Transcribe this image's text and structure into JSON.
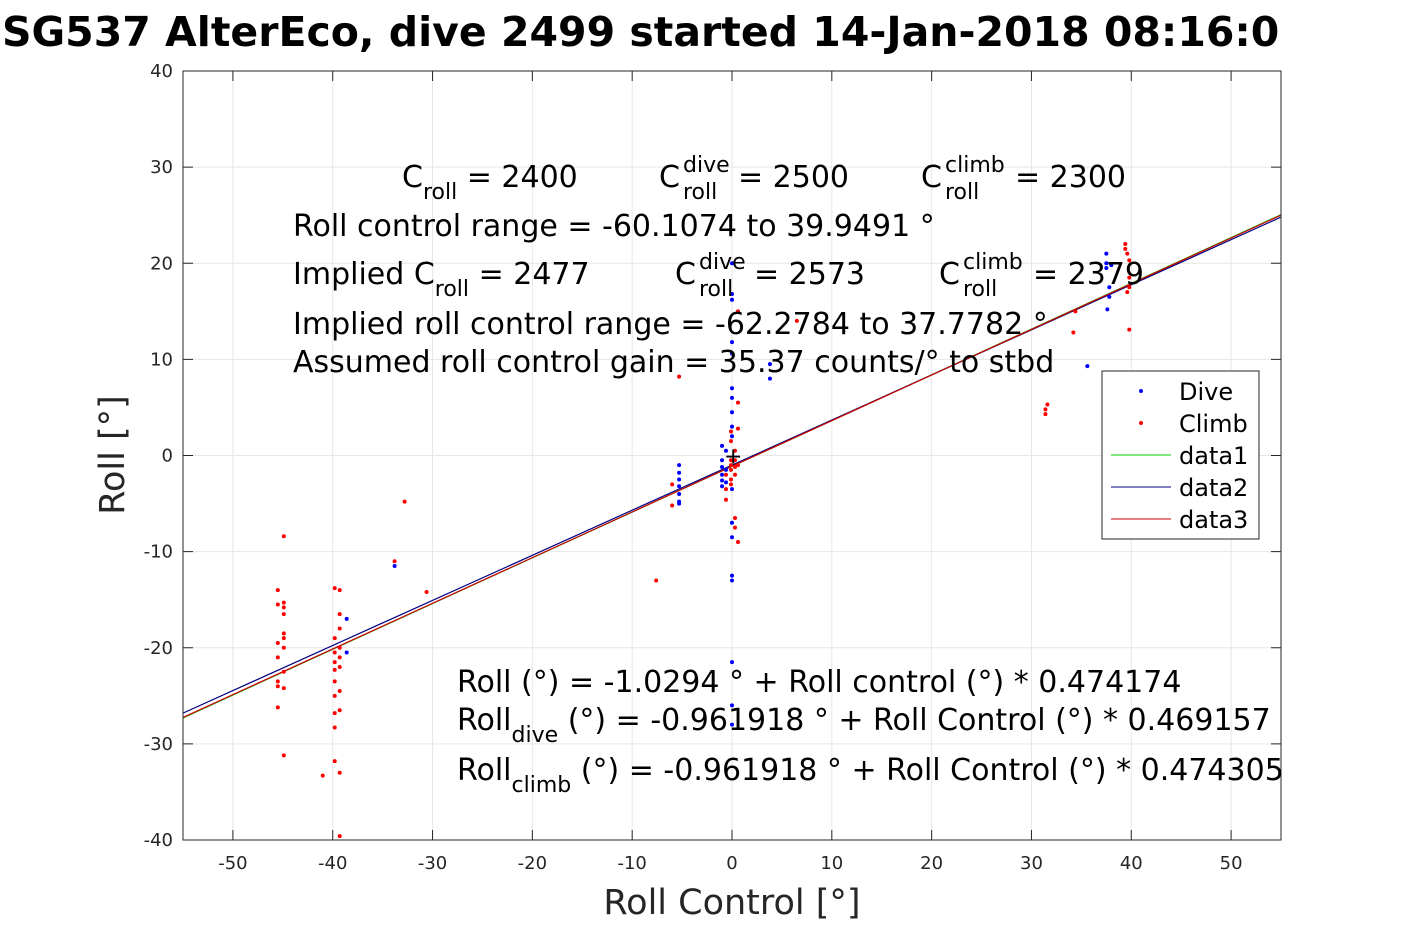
{
  "chart_data": {
    "type": "scatter",
    "title": "SG537 AlterEco, dive 2499 started 14-Jan-2018 08:16:0",
    "xlabel": "Roll Control [°]",
    "ylabel": "Roll [°]",
    "xlim": [
      -55,
      55
    ],
    "ylim": [
      -40,
      40
    ],
    "xticks": [
      -50,
      -40,
      -30,
      -20,
      -10,
      0,
      10,
      20,
      30,
      40,
      50
    ],
    "yticks": [
      -40,
      -30,
      -20,
      -10,
      0,
      10,
      20,
      30,
      40
    ],
    "xtick_labels": [
      "-50",
      "-40",
      "-30",
      "-20",
      "-10",
      "0",
      "10",
      "20",
      "30",
      "40",
      "50"
    ],
    "ytick_labels": [
      "-40",
      "-30",
      "-20",
      "-10",
      "0",
      "10",
      "20",
      "30",
      "40"
    ],
    "grid": true,
    "legend_position": "right",
    "legend": [
      "Dive",
      "Climb",
      "data1",
      "data2",
      "data3"
    ],
    "colors": {
      "dive": "#0000ff",
      "climb": "#ff0000",
      "data1": "#00cc00",
      "data2": "#000080",
      "data3": "#cc0000"
    },
    "series": [
      {
        "name": "Dive",
        "kind": "points",
        "color": "#0000ff",
        "points": [
          [
            -33.8,
            -11.5
          ],
          [
            -38.6,
            -17.0
          ],
          [
            -38.6,
            -20.5
          ],
          [
            -5.3,
            -1.0
          ],
          [
            -5.3,
            -1.8
          ],
          [
            -5.3,
            -2.5
          ],
          [
            -5.3,
            -3.2
          ],
          [
            -5.3,
            -4.0
          ],
          [
            -5.3,
            -4.8
          ],
          [
            -5.3,
            -5.0
          ],
          [
            -1.0,
            1.0
          ],
          [
            -1.0,
            -0.5
          ],
          [
            -1.0,
            -1.2
          ],
          [
            -1.0,
            -2.0
          ],
          [
            -1.0,
            -2.6
          ],
          [
            -1.0,
            -3.2
          ],
          [
            -0.6,
            0.5
          ],
          [
            -0.6,
            -1.5
          ],
          [
            -0.6,
            -2.8
          ],
          [
            0.0,
            20.0
          ],
          [
            0.0,
            16.8
          ],
          [
            0.0,
            16.2
          ],
          [
            0.0,
            11.8
          ],
          [
            0.0,
            10.6
          ],
          [
            0.0,
            7.0
          ],
          [
            0.0,
            6.0
          ],
          [
            0.0,
            4.5
          ],
          [
            0.0,
            3.0
          ],
          [
            0.0,
            2.0
          ],
          [
            0.0,
            -3.5
          ],
          [
            0.0,
            -7.0
          ],
          [
            0.0,
            -8.5
          ],
          [
            0.0,
            -12.5
          ],
          [
            0.0,
            -13.0
          ],
          [
            0.0,
            -21.5
          ],
          [
            0.0,
            -26.0
          ],
          [
            0.0,
            -28.0
          ],
          [
            3.8,
            8.0
          ],
          [
            3.8,
            9.5
          ],
          [
            35.6,
            9.3
          ],
          [
            37.5,
            21.0
          ],
          [
            37.5,
            20.0
          ],
          [
            37.5,
            19.5
          ],
          [
            37.8,
            17.5
          ],
          [
            37.8,
            16.5
          ],
          [
            37.6,
            15.2
          ],
          [
            38.0,
            19.8
          ]
        ]
      },
      {
        "name": "Climb",
        "kind": "points",
        "color": "#ff0000",
        "points": [
          [
            -45.5,
            -14.0
          ],
          [
            -45.5,
            -15.5
          ],
          [
            -45.5,
            -19.5
          ],
          [
            -45.5,
            -21.0
          ],
          [
            -45.5,
            -23.5
          ],
          [
            -45.5,
            -24.0
          ],
          [
            -45.5,
            -26.2
          ],
          [
            -44.9,
            -8.4
          ],
          [
            -44.9,
            -15.3
          ],
          [
            -44.9,
            -15.8
          ],
          [
            -44.9,
            -16.5
          ],
          [
            -44.9,
            -18.5
          ],
          [
            -44.9,
            -19.0
          ],
          [
            -44.9,
            -20.0
          ],
          [
            -44.9,
            -22.5
          ],
          [
            -44.9,
            -24.2
          ],
          [
            -44.9,
            -31.2
          ],
          [
            -41.0,
            -33.3
          ],
          [
            -39.8,
            -13.8
          ],
          [
            -39.8,
            -19.0
          ],
          [
            -39.8,
            -20.5
          ],
          [
            -39.8,
            -21.5
          ],
          [
            -39.8,
            -22.3
          ],
          [
            -39.8,
            -23.5
          ],
          [
            -39.8,
            -25.0
          ],
          [
            -39.8,
            -26.8
          ],
          [
            -39.8,
            -28.3
          ],
          [
            -39.8,
            -31.8
          ],
          [
            -39.3,
            -14.0
          ],
          [
            -39.3,
            -16.5
          ],
          [
            -39.3,
            -18.0
          ],
          [
            -39.3,
            -20.0
          ],
          [
            -39.3,
            -21.0
          ],
          [
            -39.3,
            -22.0
          ],
          [
            -39.3,
            -24.5
          ],
          [
            -39.3,
            -26.5
          ],
          [
            -39.3,
            -33.0
          ],
          [
            -39.3,
            -39.6
          ],
          [
            -33.8,
            -11.0
          ],
          [
            -32.8,
            -4.8
          ],
          [
            -30.6,
            -14.2
          ],
          [
            -7.6,
            -13.0
          ],
          [
            -6.0,
            -3.0
          ],
          [
            -6.0,
            -5.2
          ],
          [
            -5.3,
            8.2
          ],
          [
            -0.6,
            -2.0
          ],
          [
            -0.6,
            -3.5
          ],
          [
            -0.6,
            -4.6
          ],
          [
            -0.1,
            -0.5
          ],
          [
            -0.1,
            -1.0
          ],
          [
            -0.1,
            -1.5
          ],
          [
            -0.1,
            -2.5
          ],
          [
            -0.1,
            -3.0
          ],
          [
            -0.1,
            2.5
          ],
          [
            -0.1,
            1.5
          ],
          [
            0.3,
            0.5
          ],
          [
            0.3,
            -0.5
          ],
          [
            0.3,
            -1.2
          ],
          [
            0.3,
            -2.0
          ],
          [
            0.3,
            -6.5
          ],
          [
            0.3,
            -7.5
          ],
          [
            0.6,
            2.8
          ],
          [
            0.6,
            -1.0
          ],
          [
            0.6,
            -9.0
          ],
          [
            0.6,
            15.0
          ],
          [
            0.6,
            5.5
          ],
          [
            6.5,
            14.0
          ],
          [
            31.4,
            4.3
          ],
          [
            31.4,
            4.8
          ],
          [
            31.6,
            5.3
          ],
          [
            34.2,
            12.8
          ],
          [
            34.4,
            15.0
          ],
          [
            39.4,
            22.0
          ],
          [
            39.4,
            21.5
          ],
          [
            39.6,
            21.0
          ],
          [
            39.6,
            17.0
          ],
          [
            39.8,
            13.1
          ],
          [
            39.8,
            17.5
          ],
          [
            39.8,
            20.3
          ],
          [
            39.8,
            18.5
          ]
        ]
      },
      {
        "name": "data1",
        "kind": "line",
        "color": "#00cc00",
        "x": [
          -55,
          55
        ],
        "y": [
          -27.3,
          25.05
        ]
      },
      {
        "name": "data2",
        "kind": "line",
        "color": "#000080",
        "x": [
          -55,
          55
        ],
        "y": [
          -26.8,
          24.8
        ]
      },
      {
        "name": "data3",
        "kind": "line",
        "color": "#cc0000",
        "x": [
          -55,
          55
        ],
        "y": [
          -27.25,
          25.0
        ]
      }
    ],
    "annotations": {
      "c_roll": {
        "base": "C",
        "sub": "roll",
        "rest": " = 2400"
      },
      "c_roll_dive": {
        "base": "C",
        "sup": "dive",
        "sub": "roll",
        "rest": " = 2500"
      },
      "c_roll_climb": {
        "base": "C",
        "sup": "climb",
        "sub": "roll",
        "rest": " = 2300"
      },
      "range": "Roll control range = -60.1074 to 39.9491 °",
      "implied_c_roll": {
        "base": "Implied C",
        "sub": "roll",
        "rest": " = 2477"
      },
      "implied_c_dive": {
        "base": "C",
        "sup": "dive",
        "sub": "roll",
        "rest": " = 2573"
      },
      "implied_c_climb": {
        "base": "C",
        "sup": "climb",
        "sub": "roll",
        "rest": " = 2379"
      },
      "implied_range": "Implied roll control range = -62.2784 to 37.7782 °",
      "gain": "Assumed roll control gain = 35.37 counts/° to stbd",
      "fit_all": "Roll (°) = -1.0294 ° + Roll control (°) * 0.474174",
      "fit_dive": {
        "base": "Roll",
        "sub": "dive",
        "rest": " (°) = -0.961918 ° + Roll Control (°) * 0.469157"
      },
      "fit_climb": {
        "base": "Roll",
        "sub": "climb",
        "rest": " (°) = -0.961918 ° + Roll Control (°) * 0.474305"
      }
    }
  }
}
